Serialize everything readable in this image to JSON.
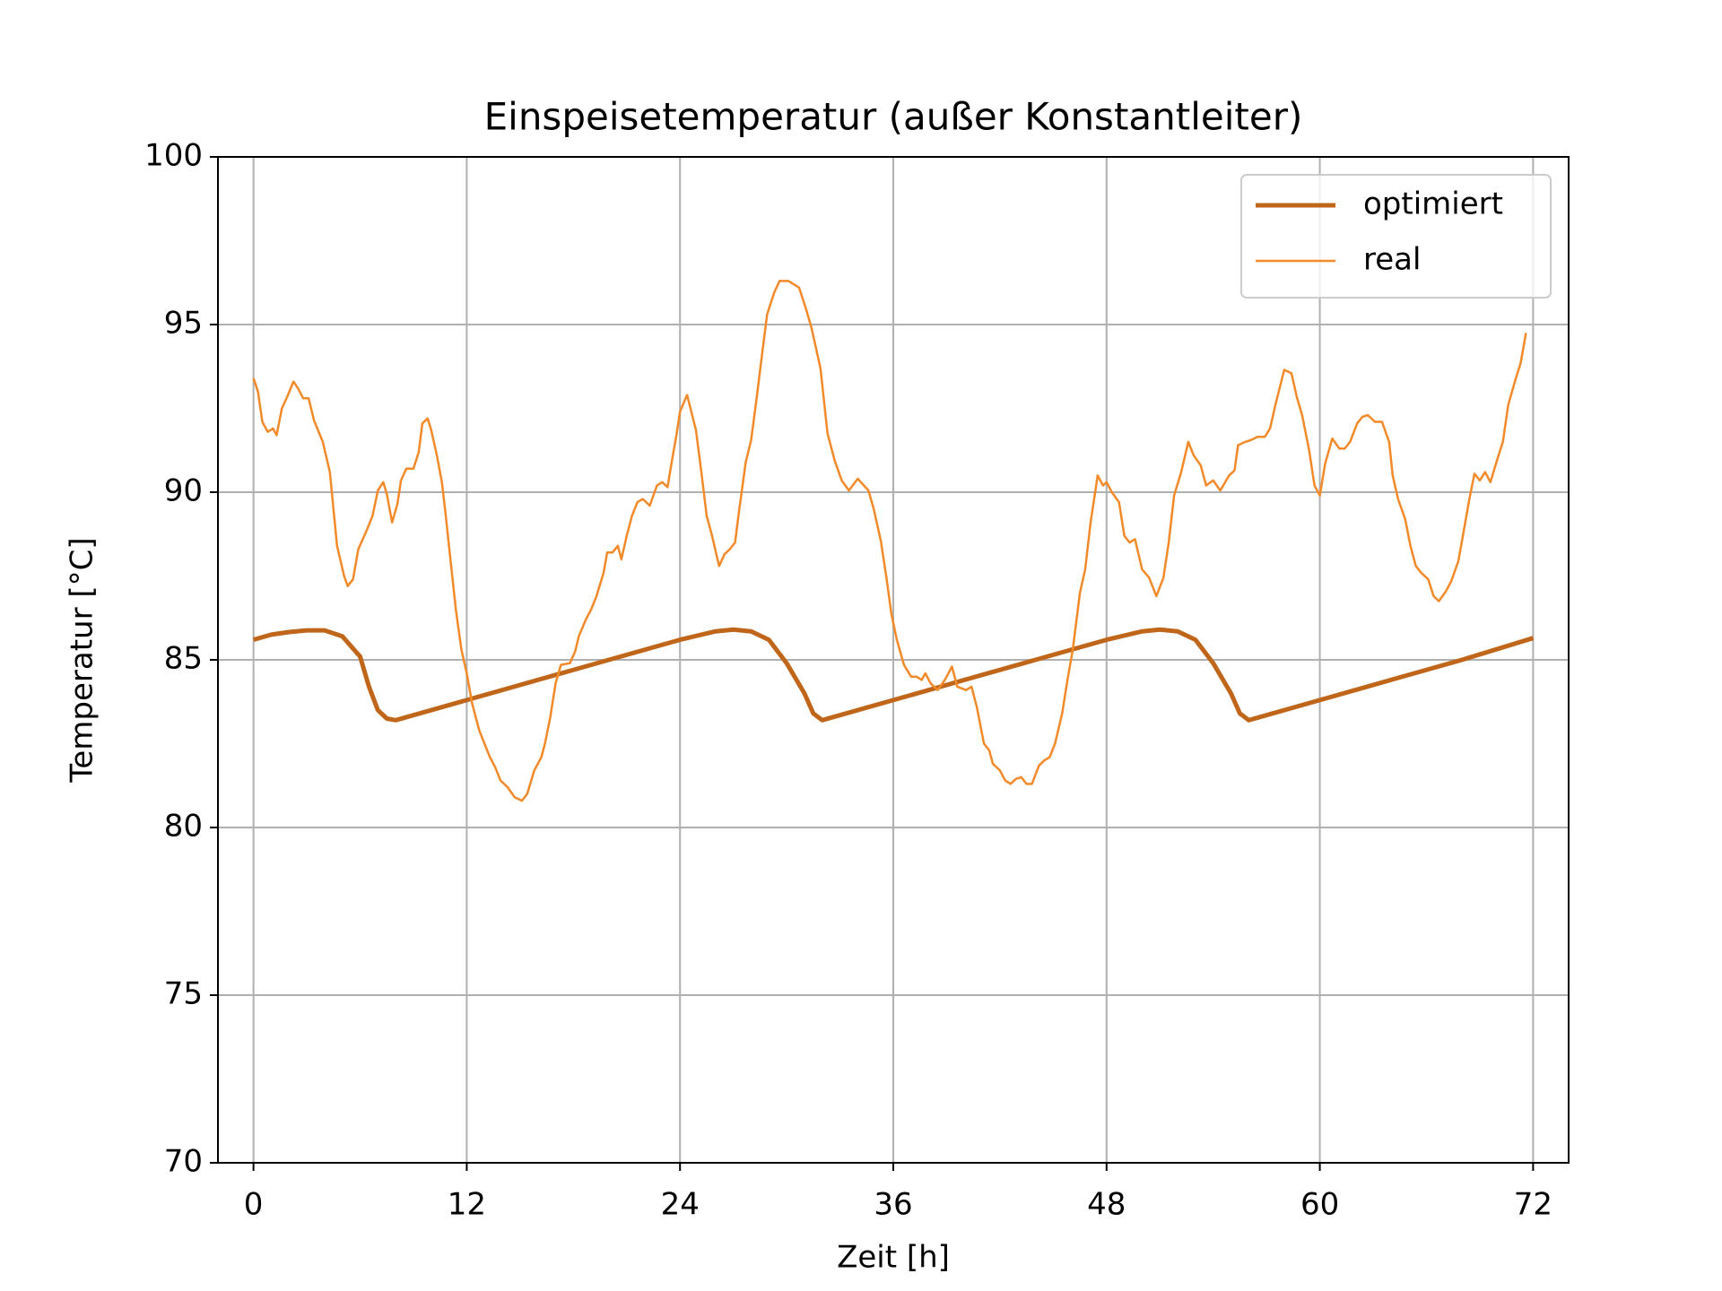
{
  "chart_data": {
    "type": "line",
    "title": "Einspeisetemperatur (außer Konstantleiter)",
    "xlabel": "Zeit [h]",
    "ylabel": "Temperatur [°C]",
    "xlim": [
      -2,
      74
    ],
    "ylim": [
      70,
      100
    ],
    "xticks": [
      0,
      12,
      24,
      36,
      48,
      60,
      72
    ],
    "yticks": [
      70,
      75,
      80,
      85,
      90,
      95,
      100
    ],
    "grid": true,
    "legend": "upper right",
    "series": [
      {
        "name": "optimiert",
        "color": "#c0661a",
        "x": [
          0,
          1,
          2,
          3,
          4,
          5,
          6,
          6.5,
          7,
          7.5,
          8,
          12,
          16,
          20,
          24,
          26,
          27,
          28,
          29,
          30,
          31,
          31.5,
          32,
          36,
          40,
          44,
          48,
          50,
          51,
          52,
          53,
          54,
          55,
          55.5,
          56,
          60,
          64,
          68,
          72
        ],
        "values": [
          85.6,
          85.75,
          85.83,
          85.88,
          85.88,
          85.7,
          85.1,
          84.2,
          83.5,
          83.25,
          83.2,
          83.8,
          84.4,
          85.0,
          85.6,
          85.85,
          85.9,
          85.85,
          85.6,
          84.9,
          84.0,
          83.4,
          83.2,
          83.8,
          84.4,
          85.0,
          85.6,
          85.85,
          85.9,
          85.85,
          85.6,
          84.9,
          84.0,
          83.4,
          83.2,
          83.8,
          84.4,
          85.0,
          85.65
        ]
      },
      {
        "name": "real",
        "color": "#f28a2a",
        "x": [
          0,
          0.25,
          0.5,
          0.8,
          1.1,
          1.3,
          1.6,
          1.9,
          2.25,
          2.5,
          2.8,
          3.1,
          3.4,
          3.9,
          4.3,
          4.5,
          4.7,
          5.1,
          5.3,
          5.6,
          5.9,
          6.4,
          6.7,
          7.0,
          7.3,
          7.5,
          7.8,
          8.1,
          8.3,
          8.6,
          9.0,
          9.3,
          9.5,
          9.8,
          10.0,
          10.3,
          10.6,
          10.8,
          11.1,
          11.4,
          11.7,
          12.0,
          12.3,
          12.7,
          13.0,
          13.3,
          13.6,
          13.9,
          14.3,
          14.7,
          15.1,
          15.4,
          15.8,
          16.2,
          16.4,
          16.7,
          17.0,
          17.3,
          17.8,
          18.1,
          18.3,
          18.7,
          19.0,
          19.3,
          19.7,
          19.9,
          20.2,
          20.5,
          20.7,
          21.0,
          21.3,
          21.6,
          21.9,
          22.3,
          22.7,
          23.0,
          23.3,
          23.5,
          23.8,
          24.0,
          24.4,
          24.9,
          25.2,
          25.5,
          25.8,
          26.2,
          26.5,
          26.8,
          27.1,
          27.3,
          27.7,
          28.0,
          28.3,
          28.6,
          28.9,
          29.3,
          29.6,
          30.1,
          30.4,
          30.7,
          31.1,
          31.4,
          31.9,
          32.3,
          32.7,
          33.1,
          33.5,
          34.0,
          34.6,
          34.9,
          35.3,
          35.6,
          35.9,
          36.2,
          36.6,
          37.0,
          37.3,
          37.6,
          37.8,
          38.1,
          38.5,
          38.9,
          39.3,
          39.6,
          40.1,
          40.4,
          40.7,
          41.1,
          41.4,
          41.6,
          42.0,
          42.3,
          42.6,
          42.9,
          43.2,
          43.5,
          43.8,
          44.2,
          44.5,
          44.8,
          45.1,
          45.5,
          45.8,
          46.1,
          46.5,
          46.8,
          47.1,
          47.5,
          47.8,
          48.0,
          48.3,
          48.7,
          49.0,
          49.3,
          49.6,
          50.0,
          50.4,
          50.8,
          51.2,
          51.5,
          51.8,
          52.2,
          52.6,
          52.9,
          53.3,
          53.6,
          54.0,
          54.4,
          54.9,
          55.2,
          55.4,
          55.8,
          56.1,
          56.5,
          56.9,
          57.2,
          57.5,
          58.0,
          58.4,
          58.7,
          59.0,
          59.4,
          59.7,
          60.0,
          60.3,
          60.7,
          61.1,
          61.4,
          61.7,
          62.1,
          62.4,
          62.7,
          63.1,
          63.5,
          63.9,
          64.1,
          64.4,
          64.8,
          65.1,
          65.4,
          65.7,
          66.1,
          66.4,
          66.7,
          67.1,
          67.4,
          67.8,
          68.1,
          68.4,
          68.7,
          69.0,
          69.3,
          69.6,
          70.0,
          70.3,
          70.6,
          71.0,
          71.3,
          71.6
        ],
        "values": [
          93.4,
          93.0,
          92.1,
          91.8,
          91.9,
          91.7,
          92.5,
          92.85,
          93.3,
          93.1,
          92.8,
          92.8,
          92.15,
          91.5,
          90.6,
          89.5,
          88.4,
          87.5,
          87.2,
          87.4,
          88.3,
          88.9,
          89.3,
          90.05,
          90.3,
          89.95,
          89.1,
          89.65,
          90.35,
          90.7,
          90.7,
          91.2,
          92.05,
          92.2,
          91.85,
          91.15,
          90.3,
          89.4,
          87.9,
          86.45,
          85.3,
          84.6,
          83.7,
          82.9,
          82.5,
          82.1,
          81.8,
          81.4,
          81.2,
          80.9,
          80.8,
          81.0,
          81.7,
          82.1,
          82.5,
          83.3,
          84.3,
          84.85,
          84.9,
          85.25,
          85.7,
          86.2,
          86.5,
          86.9,
          87.6,
          88.2,
          88.2,
          88.4,
          88.0,
          88.7,
          89.3,
          89.7,
          89.8,
          89.6,
          90.2,
          90.3,
          90.15,
          90.8,
          91.7,
          92.4,
          92.9,
          91.85,
          90.6,
          89.3,
          88.7,
          87.8,
          88.15,
          88.3,
          88.5,
          89.35,
          90.9,
          91.55,
          92.75,
          94.05,
          95.3,
          95.95,
          96.3,
          96.3,
          96.2,
          96.1,
          95.45,
          94.9,
          93.7,
          91.75,
          90.95,
          90.35,
          90.05,
          90.4,
          90.05,
          89.5,
          88.55,
          87.5,
          86.35,
          85.6,
          84.85,
          84.5,
          84.5,
          84.4,
          84.6,
          84.3,
          84.1,
          84.4,
          84.8,
          84.2,
          84.1,
          84.2,
          83.6,
          82.5,
          82.3,
          81.9,
          81.7,
          81.4,
          81.3,
          81.45,
          81.5,
          81.3,
          81.3,
          81.85,
          82.0,
          82.1,
          82.5,
          83.4,
          84.4,
          85.3,
          87.0,
          87.7,
          89.1,
          90.5,
          90.2,
          90.3,
          90.0,
          89.7,
          88.7,
          88.5,
          88.6,
          87.7,
          87.45,
          86.9,
          87.45,
          88.5,
          89.9,
          90.6,
          91.5,
          91.1,
          90.8,
          90.2,
          90.35,
          90.05,
          90.5,
          90.65,
          91.4,
          91.5,
          91.55,
          91.65,
          91.65,
          91.9,
          92.6,
          93.65,
          93.55,
          92.85,
          92.3,
          91.25,
          90.2,
          89.9,
          90.85,
          91.6,
          91.3,
          91.3,
          91.5,
          92.05,
          92.25,
          92.3,
          92.1,
          92.1,
          91.5,
          90.5,
          89.8,
          89.2,
          88.4,
          87.8,
          87.6,
          87.4,
          86.9,
          86.75,
          87.05,
          87.35,
          87.95,
          88.85,
          89.75,
          90.55,
          90.35,
          90.6,
          90.3,
          91.0,
          91.5,
          92.6,
          93.35,
          93.85,
          94.75
        ]
      }
    ]
  }
}
